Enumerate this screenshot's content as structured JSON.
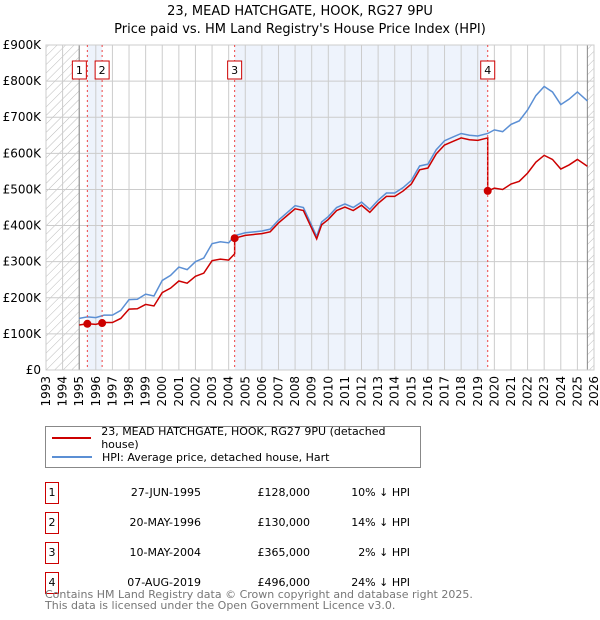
{
  "chart_data": {
    "type": "line",
    "title": "23, MEAD HATCHGATE, HOOK, RG27 9PU",
    "subtitle": "Price paid vs. HM Land Registry's House Price Index (HPI)",
    "xlim": [
      1993,
      2026
    ],
    "ylim": [
      0,
      900000
    ],
    "y_ticks": [
      "£0",
      "£100K",
      "£200K",
      "£300K",
      "£400K",
      "£500K",
      "£600K",
      "£700K",
      "£800K",
      "£900K"
    ],
    "x_ticks": [
      "1993",
      "1994",
      "1995",
      "1996",
      "1997",
      "1998",
      "1999",
      "2000",
      "2001",
      "2002",
      "2003",
      "2004",
      "2005",
      "2006",
      "2007",
      "2008",
      "2009",
      "2010",
      "2011",
      "2012",
      "2013",
      "2014",
      "2015",
      "2016",
      "2017",
      "2018",
      "2019",
      "2020",
      "2021",
      "2022",
      "2023",
      "2024",
      "2025",
      "2026"
    ],
    "grid": true,
    "hpi_series": {
      "name": "HPI: Average price, detached house, Hart",
      "color": "#5b8fd4",
      "x": [
        1995.0,
        1995.5,
        1996,
        1996.5,
        1997,
        1997.5,
        1998,
        1998.5,
        1999,
        1999.5,
        2000,
        2000.5,
        2001,
        2001.5,
        2002,
        2002.5,
        2003,
        2003.5,
        2004,
        2004.36,
        2005,
        2006,
        2006.5,
        2007,
        2007.5,
        2008,
        2008.5,
        2009,
        2009.3,
        2009.6,
        2010,
        2010.5,
        2011,
        2011.5,
        2012,
        2012.5,
        2013,
        2013.5,
        2014,
        2014.5,
        2015,
        2015.5,
        2016,
        2016.5,
        2017,
        2017.5,
        2018,
        2018.5,
        2019,
        2019.6,
        2020,
        2020.5,
        2021,
        2021.5,
        2022,
        2022.5,
        2023,
        2023.5,
        2024,
        2024.5,
        2025,
        2025.6
      ],
      "y": [
        143000,
        147000,
        145000,
        152000,
        152000,
        165000,
        195000,
        196000,
        210000,
        205000,
        248000,
        262000,
        285000,
        278000,
        300000,
        310000,
        350000,
        355000,
        352000,
        372000,
        380000,
        385000,
        390000,
        415000,
        435000,
        455000,
        450000,
        400000,
        370000,
        410000,
        425000,
        450000,
        460000,
        450000,
        465000,
        445000,
        470000,
        490000,
        490000,
        505000,
        525000,
        565000,
        570000,
        610000,
        635000,
        645000,
        655000,
        650000,
        648000,
        655000,
        665000,
        660000,
        680000,
        690000,
        720000,
        760000,
        785000,
        770000,
        735000,
        750000,
        770000,
        745000
      ]
    },
    "property_series": {
      "name": "23, MEAD HATCHGATE, HOOK, RG27 9PU (detached house)",
      "color": "#cc0000"
    },
    "sales": [
      {
        "n": "1",
        "x": 1995.49,
        "date": "27-JUN-1995",
        "price": 128000,
        "price_label": "£128,000",
        "pct": "10% ↓ HPI"
      },
      {
        "n": "2",
        "x": 1996.38,
        "date": "20-MAY-1996",
        "price": 130000,
        "price_label": "£130,000",
        "pct": "14% ↓ HPI"
      },
      {
        "n": "3",
        "x": 2004.36,
        "date": "10-MAY-2004",
        "price": 365000,
        "price_label": "£365,000",
        "pct": "2% ↓ HPI"
      },
      {
        "n": "4",
        "x": 2019.6,
        "date": "07-AUG-2019",
        "price": 496000,
        "price_label": "£496,000",
        "pct": "24% ↓ HPI"
      }
    ],
    "legend_placement": "below"
  },
  "footer": {
    "line1": "Contains HM Land Registry data © Crown copyright and database right 2025.",
    "line2": "This data is licensed under the Open Government Licence v3.0."
  }
}
